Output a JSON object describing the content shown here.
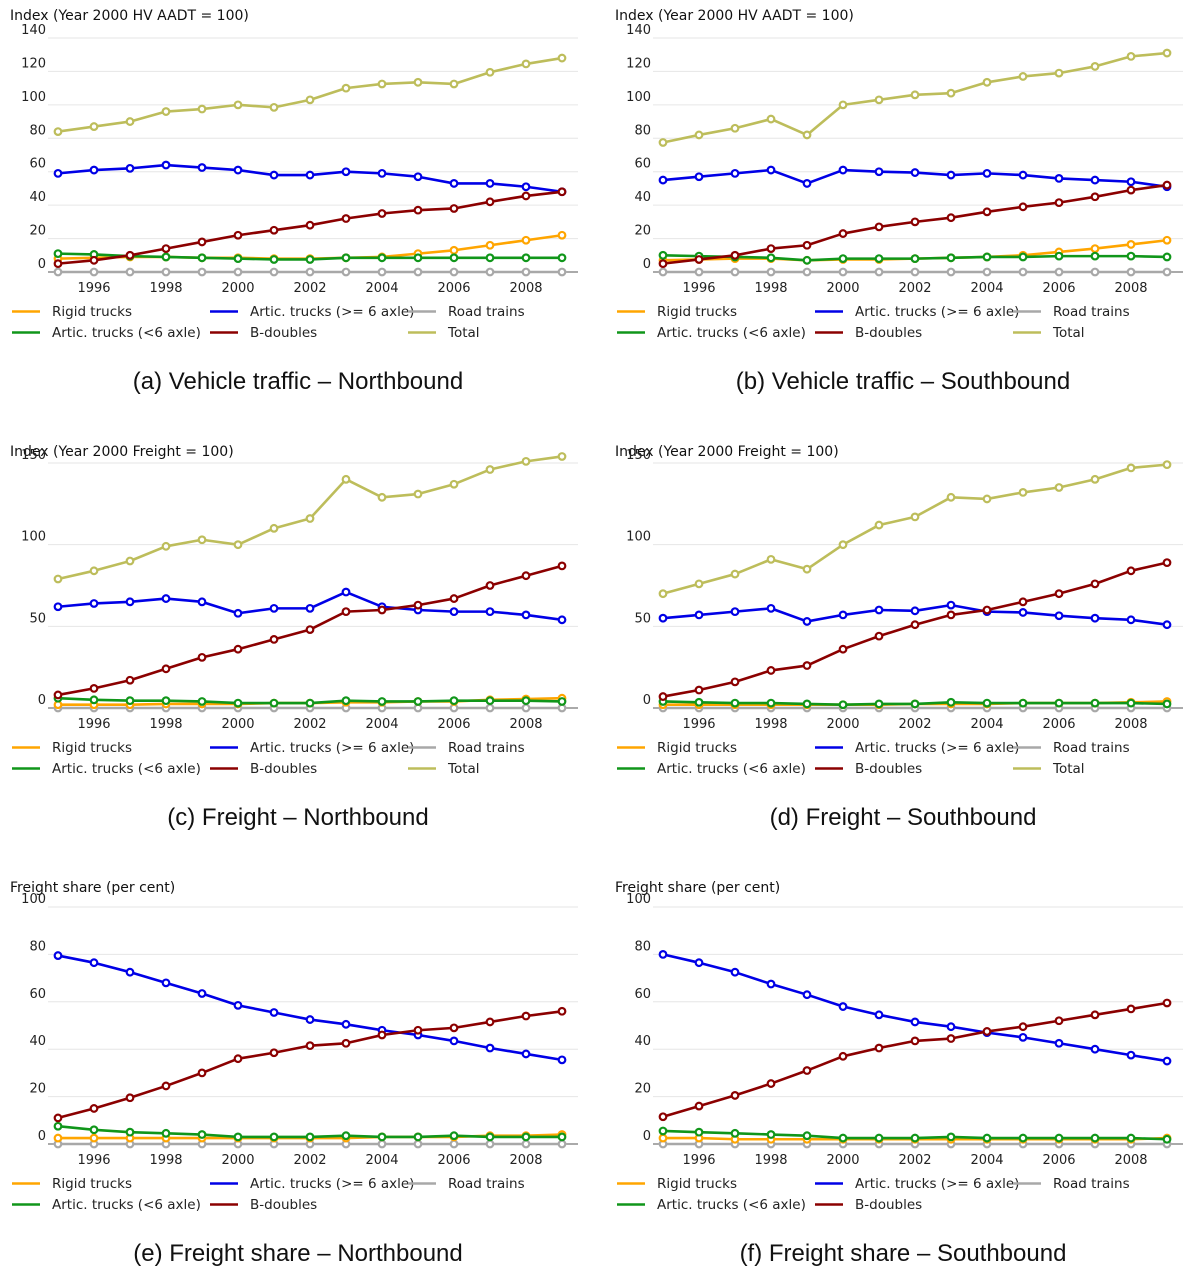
{
  "years": [
    1995,
    1996,
    1997,
    1998,
    1999,
    2000,
    2001,
    2002,
    2003,
    2004,
    2005,
    2006,
    2007,
    2008,
    2009
  ],
  "series_styles": {
    "rigid": {
      "label": "Rigid trucks",
      "color": "#FFA500"
    },
    "artic_lt6": {
      "label": "Artic. trucks (<6 axle)",
      "color": "#10961A"
    },
    "artic_ge6": {
      "label": "Artic. trucks (>= 6 axle)",
      "color": "#0000E6"
    },
    "bdoubles": {
      "label": "B-doubles",
      "color": "#8B0000"
    },
    "roadtrains": {
      "label": "Road trains",
      "color": "#A8A8A8"
    },
    "total": {
      "label": "Total",
      "color": "#BDBD5B"
    }
  },
  "chart_data": [
    {
      "type": "line",
      "caption": "(a) Vehicle traffic – Northbound",
      "ylabel": "Index (Year 2000 HV AADT = 100)",
      "ylim": [
        0,
        140
      ],
      "yticks": [
        0,
        20,
        40,
        60,
        80,
        100,
        120,
        140
      ],
      "xticks": [
        1996,
        1998,
        2000,
        2002,
        2004,
        2006,
        2008
      ],
      "grid": true,
      "legend_position": "bottom",
      "series": [
        {
          "key": "rigid",
          "values": [
            8,
            8.5,
            9,
            9,
            8.5,
            8.5,
            8,
            8,
            8.5,
            9,
            11,
            13,
            16,
            19,
            22
          ]
        },
        {
          "key": "artic_lt6",
          "values": [
            11,
            10.5,
            9.5,
            9,
            8.5,
            8,
            7.5,
            7.5,
            8.5,
            8.5,
            8.5,
            8.5,
            8.5,
            8.5,
            8.5
          ]
        },
        {
          "key": "artic_ge6",
          "values": [
            59,
            61,
            62,
            64,
            62.5,
            61,
            58,
            58,
            60,
            59,
            57,
            53,
            53,
            51,
            48
          ]
        },
        {
          "key": "bdoubles",
          "values": [
            5,
            7,
            10,
            14,
            18,
            22,
            25,
            28,
            32,
            35,
            37,
            38,
            42,
            45.5,
            48
          ]
        },
        {
          "key": "roadtrains",
          "values": [
            0,
            0,
            0,
            0,
            0,
            0,
            0,
            0,
            0,
            0,
            0,
            0,
            0,
            0,
            0
          ]
        },
        {
          "key": "total",
          "values": [
            84,
            87,
            90,
            96,
            97.5,
            100,
            98.5,
            103,
            110,
            112.5,
            113.5,
            112.5,
            119.5,
            124.5,
            128
          ]
        }
      ]
    },
    {
      "type": "line",
      "caption": "(b) Vehicle traffic – Southbound",
      "ylabel": "Index (Year 2000 HV AADT = 100)",
      "ylim": [
        0,
        140
      ],
      "yticks": [
        0,
        20,
        40,
        60,
        80,
        100,
        120,
        140
      ],
      "xticks": [
        1996,
        1998,
        2000,
        2002,
        2004,
        2006,
        2008
      ],
      "grid": true,
      "legend_position": "bottom",
      "series": [
        {
          "key": "rigid",
          "values": [
            7,
            7.5,
            8,
            8,
            7,
            7.5,
            7.5,
            8,
            8.5,
            9,
            10,
            12,
            14,
            16.5,
            19
          ]
        },
        {
          "key": "artic_lt6",
          "values": [
            10,
            9.5,
            9,
            8.5,
            7,
            8,
            8,
            8,
            8.5,
            9,
            9,
            9.5,
            9.5,
            9.5,
            9
          ]
        },
        {
          "key": "artic_ge6",
          "values": [
            55,
            57,
            59,
            61,
            53,
            61,
            60,
            59.5,
            58,
            59,
            58,
            56,
            55,
            54,
            51
          ]
        },
        {
          "key": "bdoubles",
          "values": [
            5,
            7.5,
            10,
            14,
            16,
            23,
            27,
            30,
            32.5,
            36,
            39,
            41.5,
            45,
            49,
            52
          ]
        },
        {
          "key": "roadtrains",
          "values": [
            0,
            0,
            0,
            0,
            0,
            0,
            0,
            0,
            0,
            0,
            0,
            0,
            0,
            0,
            0
          ]
        },
        {
          "key": "total",
          "values": [
            77.5,
            82,
            86,
            91.5,
            82,
            100,
            103,
            106,
            107,
            113.5,
            117,
            119,
            123,
            129,
            131
          ]
        }
      ]
    },
    {
      "type": "line",
      "caption": "(c) Freight – Northbound",
      "ylabel": "Index (Year 2000 Freight = 100)",
      "ylim": [
        0,
        165
      ],
      "yticks": [
        0,
        50,
        100,
        150
      ],
      "xticks": [
        1996,
        1998,
        2000,
        2002,
        2004,
        2006,
        2008
      ],
      "grid": true,
      "legend_position": "bottom",
      "series": [
        {
          "key": "rigid",
          "values": [
            2,
            2,
            2,
            2.5,
            2.5,
            2.5,
            3,
            3,
            3.5,
            3.5,
            4,
            4,
            5,
            5.5,
            6
          ]
        },
        {
          "key": "artic_lt6",
          "values": [
            6,
            5,
            4.5,
            4.5,
            4,
            3,
            3,
            3,
            4.5,
            4,
            4,
            4.5,
            4.5,
            4.5,
            4
          ]
        },
        {
          "key": "artic_ge6",
          "values": [
            62,
            64,
            65,
            67,
            65,
            58,
            61,
            61,
            71,
            62,
            60,
            59,
            59,
            57,
            54
          ]
        },
        {
          "key": "bdoubles",
          "values": [
            8,
            12,
            17,
            24,
            31,
            36,
            42,
            48,
            59,
            60,
            63,
            67,
            75,
            81,
            87
          ]
        },
        {
          "key": "roadtrains",
          "values": [
            0,
            0,
            0,
            0,
            0,
            0,
            0,
            0,
            0,
            0,
            0,
            0,
            0,
            0,
            0
          ]
        },
        {
          "key": "total",
          "values": [
            79,
            84,
            90,
            99,
            103,
            100,
            110,
            116,
            140,
            129,
            131,
            137,
            146,
            151,
            154
          ]
        }
      ]
    },
    {
      "type": "line",
      "caption": "(d) Freight – Southbound",
      "ylabel": "Index (Year 2000 Freight = 100)",
      "ylim": [
        0,
        165
      ],
      "yticks": [
        0,
        50,
        100,
        150
      ],
      "xticks": [
        1996,
        1998,
        2000,
        2002,
        2004,
        2006,
        2008
      ],
      "grid": true,
      "legend_position": "bottom",
      "series": [
        {
          "key": "rigid",
          "values": [
            2,
            2,
            2,
            2,
            2,
            2,
            2,
            2.5,
            2.5,
            2.5,
            3,
            3,
            3,
            3.5,
            4
          ]
        },
        {
          "key": "artic_lt6",
          "values": [
            4,
            3.5,
            3,
            3,
            2.5,
            2,
            2.5,
            2.5,
            3.5,
            3,
            3,
            3,
            3,
            3,
            2.5
          ]
        },
        {
          "key": "artic_ge6",
          "values": [
            55,
            57,
            59,
            61,
            53,
            57,
            60,
            59.5,
            63,
            59,
            58.5,
            56.5,
            55,
            54,
            51
          ]
        },
        {
          "key": "bdoubles",
          "values": [
            7,
            11,
            16,
            23,
            26,
            36,
            44,
            51,
            57,
            60,
            65,
            70,
            76,
            84,
            89
          ]
        },
        {
          "key": "roadtrains",
          "values": [
            0,
            0,
            0,
            0,
            0,
            0,
            0,
            0,
            0,
            0,
            0,
            0,
            0,
            0,
            0
          ]
        },
        {
          "key": "total",
          "values": [
            70,
            76,
            82,
            91,
            85,
            100,
            112,
            117,
            129,
            128,
            132,
            135,
            140,
            147,
            149
          ]
        }
      ]
    },
    {
      "type": "line",
      "caption": "(e) Freight share – Northbound",
      "ylabel": "Freight share (per cent)",
      "ylim": [
        0,
        100
      ],
      "yticks": [
        0,
        20,
        40,
        60,
        80,
        100
      ],
      "xticks": [
        1996,
        1998,
        2000,
        2002,
        2004,
        2006,
        2008
      ],
      "grid": true,
      "legend_position": "bottom",
      "series": [
        {
          "key": "rigid",
          "values": [
            2.5,
            2.5,
            2.5,
            2.5,
            2.5,
            2.5,
            2.5,
            2.5,
            2.5,
            3,
            3,
            3,
            3.5,
            3.5,
            4
          ]
        },
        {
          "key": "artic_lt6",
          "values": [
            7.5,
            6,
            5,
            4.5,
            4,
            3,
            3,
            3,
            3.5,
            3,
            3,
            3.5,
            3,
            3,
            3
          ]
        },
        {
          "key": "artic_ge6",
          "values": [
            79.5,
            76.5,
            72.5,
            68,
            63.5,
            58.5,
            55.5,
            52.5,
            50.5,
            48,
            46,
            43.5,
            40.5,
            38,
            35.5
          ]
        },
        {
          "key": "bdoubles",
          "values": [
            11,
            15,
            19.5,
            24.5,
            30,
            36,
            38.5,
            41.5,
            42.5,
            46,
            48,
            49,
            51.5,
            54,
            56
          ]
        },
        {
          "key": "roadtrains",
          "values": [
            0,
            0,
            0,
            0,
            0,
            0,
            0,
            0,
            0,
            0,
            0,
            0,
            0,
            0,
            0
          ]
        }
      ]
    },
    {
      "type": "line",
      "caption": "(f) Freight share – Southbound",
      "ylabel": "Freight share (per cent)",
      "ylim": [
        0,
        100
      ],
      "yticks": [
        0,
        20,
        40,
        60,
        80,
        100
      ],
      "xticks": [
        1996,
        1998,
        2000,
        2002,
        2004,
        2006,
        2008
      ],
      "grid": true,
      "legend_position": "bottom",
      "series": [
        {
          "key": "rigid",
          "values": [
            2.5,
            2.5,
            2,
            2,
            2,
            2,
            2,
            2,
            2,
            2,
            2,
            2,
            2,
            2,
            2.5
          ]
        },
        {
          "key": "artic_lt6",
          "values": [
            5.5,
            5,
            4.5,
            4,
            3.5,
            2.5,
            2.5,
            2.5,
            3,
            2.5,
            2.5,
            2.5,
            2.5,
            2.5,
            2
          ]
        },
        {
          "key": "artic_ge6",
          "values": [
            80,
            76.5,
            72.5,
            67.5,
            63,
            58,
            54.5,
            51.5,
            49.5,
            47,
            45,
            42.5,
            40,
            37.5,
            35
          ]
        },
        {
          "key": "bdoubles",
          "values": [
            11.5,
            16,
            20.5,
            25.5,
            31,
            37,
            40.5,
            43.5,
            44.5,
            47.5,
            49.5,
            52,
            54.5,
            57,
            59.5
          ]
        },
        {
          "key": "roadtrains",
          "values": [
            0,
            0,
            0,
            0,
            0,
            0,
            0,
            0,
            0,
            0,
            0,
            0,
            0,
            0,
            0
          ]
        }
      ]
    }
  ]
}
